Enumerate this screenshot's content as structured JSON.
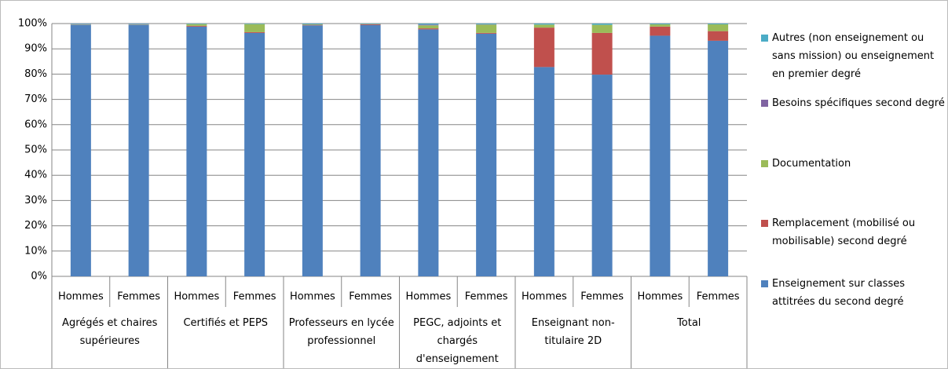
{
  "chart_data": {
    "type": "stacked_bar",
    "categories": [
      "Hommes",
      "Femmes",
      "Hommes",
      "Femmes",
      "Hommes",
      "Femmes",
      "Hommes",
      "Femmes",
      "Hommes",
      "Femmes",
      "Hommes",
      "Femmes"
    ],
    "groups": [
      "Agrégés et chaires supérieures",
      "Certifiés et PEPS",
      "Professeurs en lycée professionnel",
      "PEGC, adjoints et chargés d'enseignement",
      "Enseignant non-titulaire 2D",
      "Total"
    ],
    "series": [
      {
        "name": "Enseignement sur classes attitrées du second degré",
        "color": "#4f81bd",
        "values": [
          99.5,
          99.5,
          98.8,
          96.3,
          99.3,
          99.4,
          97.7,
          96.0,
          82.8,
          79.8,
          95.2,
          93.2
        ]
      },
      {
        "name": "Remplacement (mobilisé ou mobilisable) second degré",
        "color": "#c0504d",
        "values": [
          0.1,
          0.1,
          0.3,
          0.3,
          0.2,
          0.3,
          0.4,
          0.3,
          15.6,
          16.5,
          3.6,
          3.8
        ]
      },
      {
        "name": "Documentation",
        "color": "#9bbb59",
        "values": [
          0.1,
          0.1,
          0.7,
          3.2,
          0.2,
          0.1,
          1.2,
          3.3,
          1.2,
          3.2,
          0.9,
          2.7
        ]
      },
      {
        "name": "Besoins spécifiques second degré",
        "color": "#8064a2",
        "values": [
          0.1,
          0.1,
          0,
          0,
          0,
          0,
          0.3,
          0.1,
          0,
          0,
          0,
          0
        ]
      },
      {
        "name": "Autres (non enseignement ou sans mission) ou enseignement en premier degré",
        "color": "#4bacc6",
        "values": [
          0.2,
          0.2,
          0.2,
          0.2,
          0.3,
          0.2,
          0.4,
          0.3,
          0.4,
          0.5,
          0.3,
          0.3
        ]
      }
    ],
    "ylim": [
      0,
      100
    ],
    "yticks": [
      {
        "value": 0,
        "label": "0%"
      },
      {
        "value": 10,
        "label": "10%"
      },
      {
        "value": 20,
        "label": "20%"
      },
      {
        "value": 30,
        "label": "30%"
      },
      {
        "value": 40,
        "label": "40%"
      },
      {
        "value": 50,
        "label": "50%"
      },
      {
        "value": 60,
        "label": "60%"
      },
      {
        "value": 70,
        "label": "70%"
      },
      {
        "value": 80,
        "label": "80%"
      },
      {
        "value": 90,
        "label": "90%"
      },
      {
        "value": 100,
        "label": "100%"
      }
    ],
    "grid": true,
    "legend": "right"
  }
}
